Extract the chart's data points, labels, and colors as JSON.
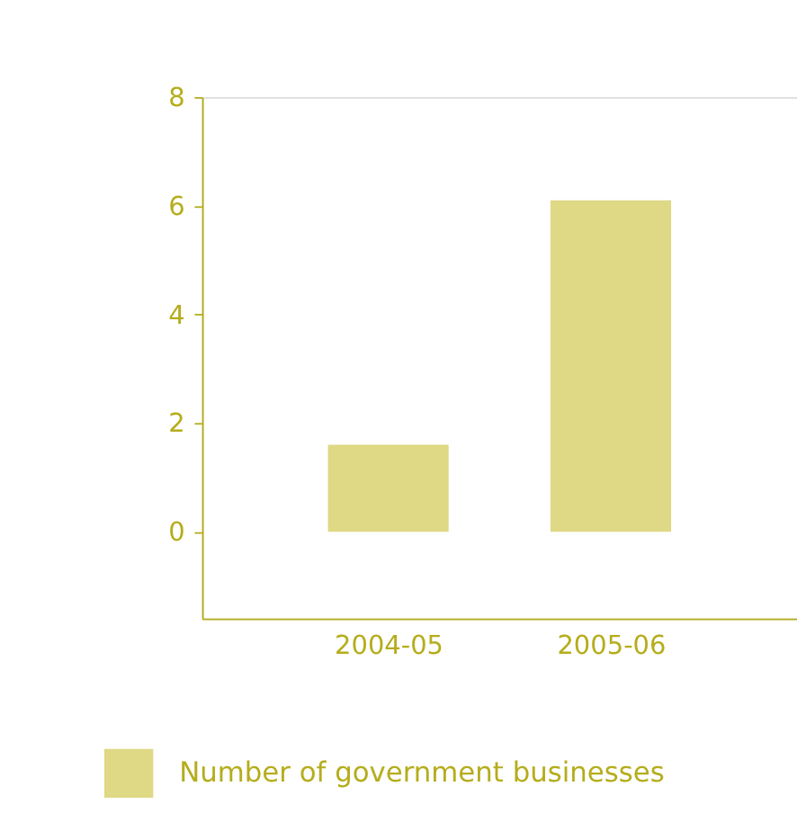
{
  "chart_data": {
    "type": "bar",
    "categories": [
      "2004-05",
      "2005-06"
    ],
    "series": [
      {
        "name": "Number of government businesses",
        "color": "#dfd884",
        "values": [
          1.6,
          6.1
        ]
      }
    ],
    "ylim": [
      -1.6,
      8
    ],
    "yticks": [
      0,
      2,
      4,
      6,
      8
    ],
    "grid": false,
    "legend": "bottom left"
  }
}
